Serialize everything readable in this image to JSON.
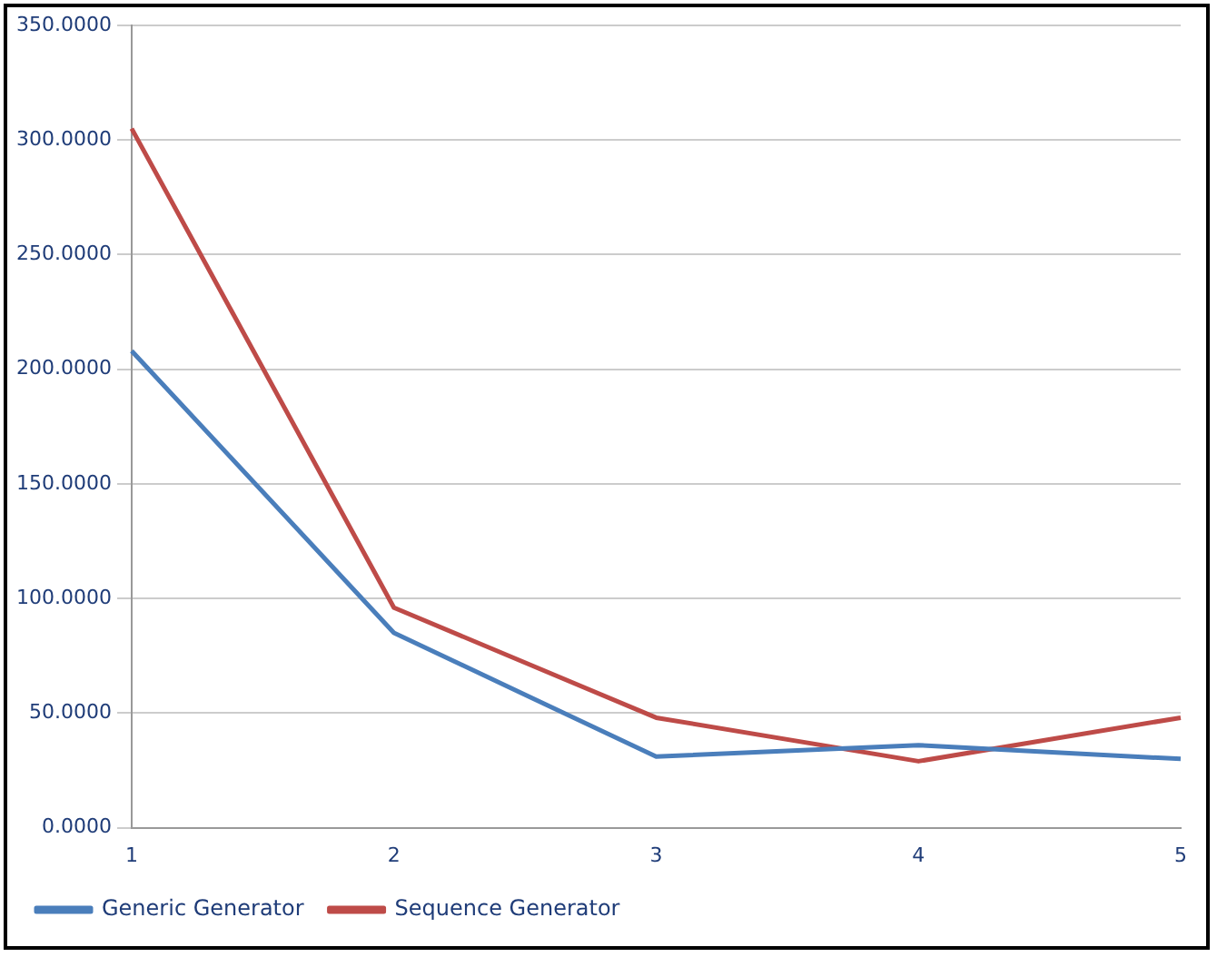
{
  "chart_data": {
    "type": "line",
    "categories": [
      "1",
      "2",
      "3",
      "4",
      "5"
    ],
    "series": [
      {
        "name": "Generic Generator",
        "color": "#4a7ebb",
        "values": [
          208,
          85,
          31,
          36,
          30
        ]
      },
      {
        "name": "Sequence Generator",
        "color": "#be4b48",
        "values": [
          305,
          96,
          48,
          29,
          48
        ]
      }
    ],
    "ylim": [
      0,
      350
    ],
    "yticks": [
      {
        "value": 0,
        "label": "0.0000"
      },
      {
        "value": 50,
        "label": "50.0000"
      },
      {
        "value": 100,
        "label": "100.0000"
      },
      {
        "value": 150,
        "label": "150.0000"
      },
      {
        "value": 200,
        "label": "200.0000"
      },
      {
        "value": 250,
        "label": "250.0000"
      },
      {
        "value": 300,
        "label": "300.0000"
      },
      {
        "value": 350,
        "label": "350.0000"
      }
    ],
    "grid": "y",
    "legend": "bottom",
    "marker": "none",
    "line_style": "solid"
  }
}
